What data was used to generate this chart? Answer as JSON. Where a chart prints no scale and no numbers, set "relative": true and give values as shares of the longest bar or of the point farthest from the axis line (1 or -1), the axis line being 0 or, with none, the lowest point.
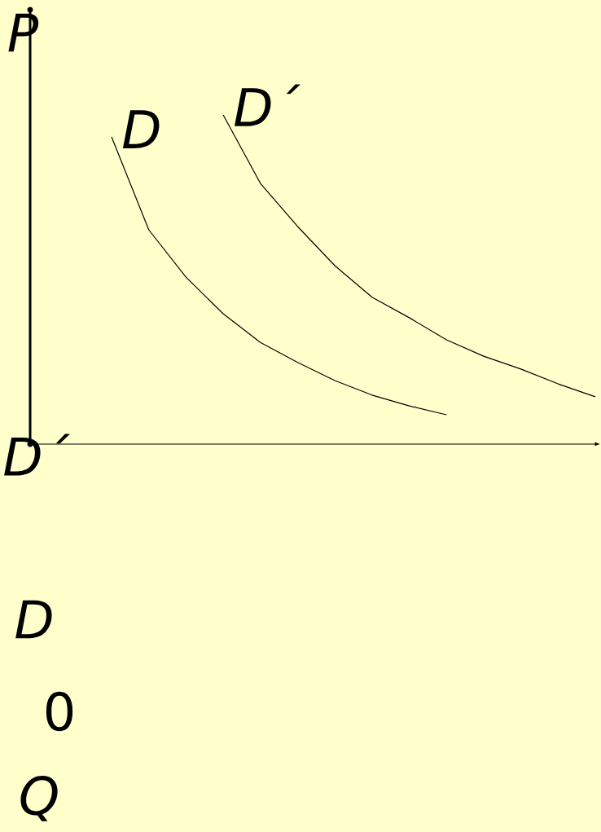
{
  "chart_data": {
    "type": "line",
    "relative": true,
    "ylabel": "P",
    "annotations": [
      "D´",
      "D",
      "0",
      "Q"
    ],
    "categories": [
      null,
      null,
      null,
      null,
      null,
      null,
      null,
      null,
      null,
      null,
      null,
      null,
      null,
      null
    ],
    "series": [
      {
        "name": "D",
        "color": "#000000",
        "values": [
          0.933,
          0.651,
          0.507,
          0.396,
          0.309,
          0.248,
          0.193,
          0.149,
          0.116,
          0.089,
          null,
          null,
          null,
          null
        ]
      },
      {
        "name": "D´",
        "color": "#000000",
        "values": [
          null,
          null,
          null,
          1.0,
          0.792,
          0.661,
          0.542,
          0.446,
          0.384,
          0.317,
          0.267,
          0.228,
          0.183,
          0.144
        ]
      }
    ]
  }
}
